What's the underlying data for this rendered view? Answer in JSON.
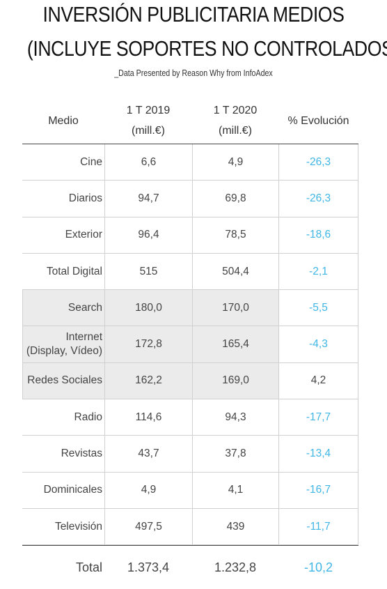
{
  "title_line1": "INVERSIÓN PUBLICITARIA MEDIOS",
  "title_line2": "(INCLUYE SOPORTES NO CONTROLADOS)",
  "subtitle": "_Data Presented by Reason Why from InfoAdex",
  "headers": {
    "medio": "Medio",
    "y2019_line1": "1 T 2019",
    "y2019_line2": "(mill.€)",
    "y2020_line1": "1 T 2020",
    "y2020_line2": "(mill.€)",
    "evolucion": "% Evolución"
  },
  "rows": [
    {
      "medio": "Cine",
      "y2019": "6,6",
      "y2020": "4,9",
      "evolucion": "-26,3",
      "shaded": false
    },
    {
      "medio": "Diarios",
      "y2019": "94,7",
      "y2020": "69,8",
      "evolucion": "-26,3",
      "shaded": false
    },
    {
      "medio": "Exterior",
      "y2019": "96,4",
      "y2020": "78,5",
      "evolucion": "-18,6",
      "shaded": false
    },
    {
      "medio": "Total Digital",
      "y2019": "515",
      "y2020": "504,4",
      "evolucion": "-2,1",
      "shaded": false
    },
    {
      "medio": "Search",
      "y2019": "180,0",
      "y2020": "170,0",
      "evolucion": "-5,5",
      "shaded": true
    },
    {
      "medio": "Internet\n(Display, Vídeo)",
      "y2019": "172,8",
      "y2020": "165,4",
      "evolucion": "-4,3",
      "shaded": true
    },
    {
      "medio": "Redes Sociales",
      "y2019": "162,2",
      "y2020": "169,0",
      "evolucion": "4,2",
      "shaded": true
    },
    {
      "medio": "Radio",
      "y2019": "114,6",
      "y2020": "94,3",
      "evolucion": "-17,7",
      "shaded": false
    },
    {
      "medio": "Revistas",
      "y2019": "43,7",
      "y2020": "37,8",
      "evolucion": "-13,4",
      "shaded": false
    },
    {
      "medio": "Dominicales",
      "y2019": "4,9",
      "y2020": "4,1",
      "evolucion": "-16,7",
      "shaded": false
    },
    {
      "medio": "Televisión",
      "y2019": "497,5",
      "y2020": "439",
      "evolucion": "-11,7",
      "shaded": false
    }
  ],
  "total": {
    "medio": "Total",
    "y2019": "1.373,4",
    "y2020": "1.232,8",
    "evolucion": "-10,2"
  },
  "colors": {
    "negative": "#3fb6e6",
    "positive": "#444444",
    "shade": "#ebebeb"
  }
}
